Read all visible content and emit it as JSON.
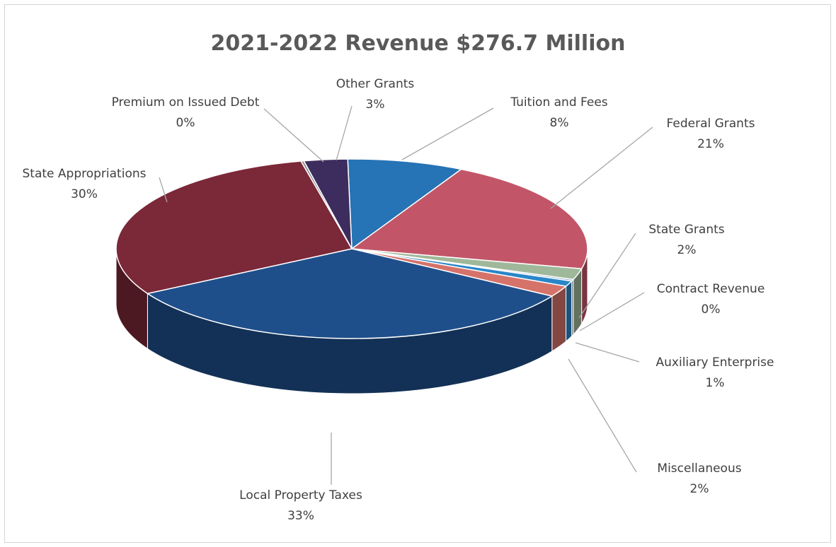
{
  "chart_data": {
    "type": "pie",
    "title": "2021-2022 Revenue $276.7 Million",
    "style": "3d",
    "labels_outside": true,
    "slices": [
      {
        "name": "Tuition and Fees",
        "value": 8,
        "label": "8%",
        "color": "#2673b5"
      },
      {
        "name": "Federal Grants",
        "value": 21,
        "label": "21%",
        "color": "#c25668"
      },
      {
        "name": "State Grants",
        "value": 2,
        "label": "2%",
        "color": "#9fb89a"
      },
      {
        "name": "Contract Revenue",
        "value": 0.3,
        "label": "0%",
        "color": "#8fa8c8"
      },
      {
        "name": "Auxiliary Enterprise",
        "value": 1,
        "label": "1%",
        "color": "#2a86c8"
      },
      {
        "name": "Miscellaneous",
        "value": 2,
        "label": "2%",
        "color": "#d5736a"
      },
      {
        "name": "Local Property Taxes",
        "value": 33,
        "label": "33%",
        "color": "#1f4f8b"
      },
      {
        "name": "State Appropriations",
        "value": 30,
        "label": "30%",
        "color": "#7b2838"
      },
      {
        "name": "Premium on Issued Debt",
        "value": 0.2,
        "label": "0%",
        "color": "#8e8e8e"
      },
      {
        "name": "Other Grants",
        "value": 3,
        "label": "3%",
        "color": "#3d2c5e"
      }
    ]
  }
}
